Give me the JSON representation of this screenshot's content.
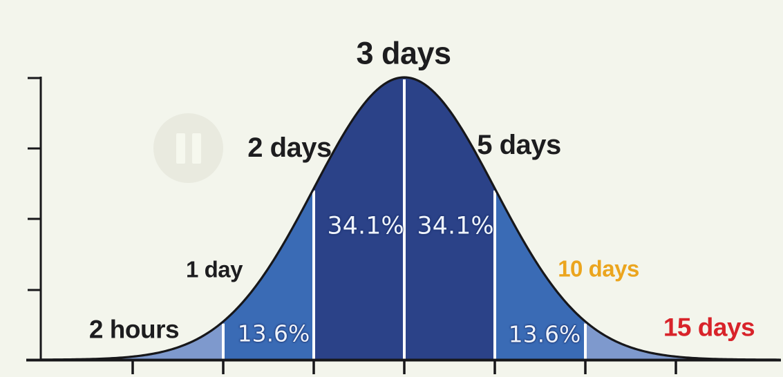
{
  "chart_data": {
    "type": "area",
    "subtype": "normal_distribution_bell_curve",
    "title": "3 days",
    "x_axis": {
      "tick_count": 7,
      "tick_text": [],
      "boundary_positions_sigma": [
        -3,
        -2,
        -1,
        0,
        1,
        2,
        3
      ],
      "boundary_labels": [
        "2 hours",
        "1 day",
        "2 days",
        "3 days",
        "5 days",
        "10 days",
        "15 days"
      ]
    },
    "y_axis": {
      "tick_count": 4,
      "tick_text": []
    },
    "series": [
      {
        "name": "time-estimate-probability",
        "distribution": "gaussian",
        "mean_label": "3 days"
      }
    ],
    "segment_percentages": {
      "categories": [
        "-2sd to -1sd",
        "-1sd to mean",
        "mean to +1sd",
        "+1sd to +2sd"
      ],
      "values": [
        13.6,
        34.1,
        34.1,
        13.6
      ]
    },
    "colors": {
      "background": "#f3f5ec",
      "band_inner": "#2b4288",
      "band_middle": "#3a6bb5",
      "band_outer": "#7e99cd",
      "divider": "#ffffff",
      "outline": "#17171a",
      "axis": "#17171a",
      "label_default": "#1d1d1f",
      "label_plus2sd": "#eba51e",
      "label_plus3sd": "#d8232a",
      "percent_text": "#eef3fb"
    },
    "geometry": {
      "mu_x": 585,
      "sigma_x": 131,
      "baseline_y": 521,
      "peak_y": 112,
      "draw_x0": 60,
      "draw_x1": 1128,
      "y_axis_x": 59,
      "y_axis_top": 111,
      "x_axis_x0": 38,
      "x_axis_x1": 1130,
      "y_tick_ys": [
        113,
        215,
        317,
        420
      ],
      "x_tick_xs": [
        192,
        323,
        454,
        585,
        716,
        847,
        978
      ]
    }
  },
  "labels": {
    "minus3": "2 hours",
    "minus2": "1 day",
    "minus1": "2 days",
    "mean": "3 days",
    "plus1": "5 days",
    "plus2": "10 days",
    "plus3": "15 days"
  },
  "percentages": {
    "left_outer": "13.6%",
    "left_inner": "34.1%",
    "right_inner": "34.1%",
    "right_outer": "13.6%"
  },
  "player": {
    "state_icon": "pause"
  }
}
